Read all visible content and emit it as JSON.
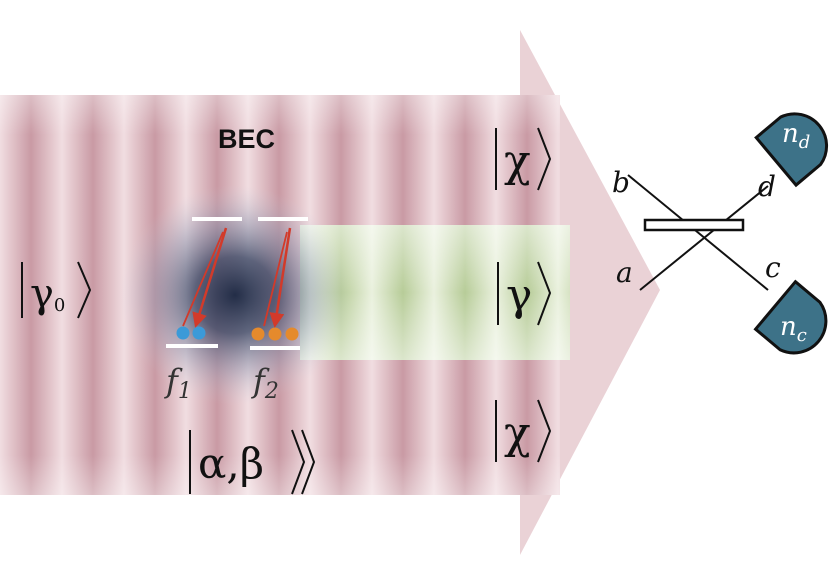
{
  "labels": {
    "bec": "BEC",
    "gamma0": "|γ₀⟩",
    "gamma0_symbol": "γ",
    "gamma0_sub": "0",
    "chi_top": "χ",
    "gamma": "γ",
    "chi_bottom": "χ",
    "alpha_beta": "α,β",
    "f1": "f",
    "f1_sub": "1",
    "f2": "f",
    "f2_sub": "2",
    "port_a": "a",
    "port_b": "b",
    "port_c": "c",
    "port_d": "d",
    "detector_d": "n",
    "detector_d_sub": "d",
    "detector_c": "n",
    "detector_c_sub": "c"
  },
  "colors": {
    "beam_stripe": "#c99aa4",
    "beam_light": "#f1dde1",
    "arrow_head": "#ead2d6",
    "green_stripe": "#b7cc98",
    "green_light": "#eaf1de",
    "bec_cloud": "#1f2a44",
    "atom_blue": "#3b9ad8",
    "atom_orange": "#e58a2c",
    "transition_red": "#d23a2a",
    "detector_fill": "#3d7288",
    "text": "#111111"
  }
}
